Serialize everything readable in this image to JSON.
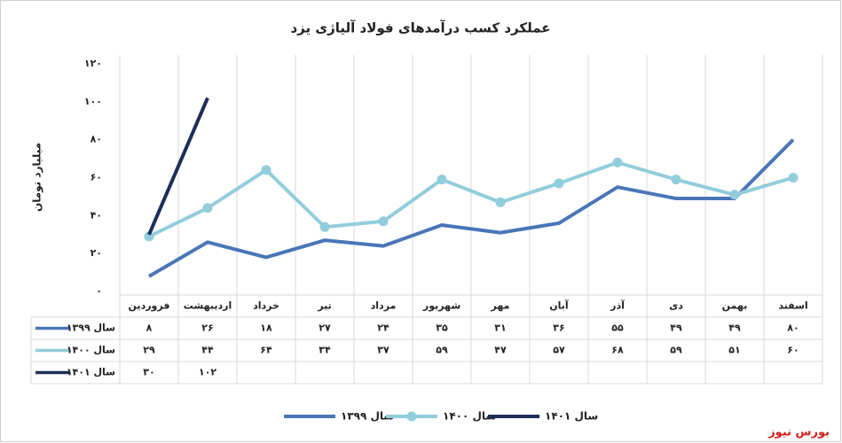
{
  "chart_data": {
    "type": "line",
    "title": "عملکرد کسب درآمدهای فولاد آلیاژی یزد",
    "y_label": "میلیارد تومان",
    "categories": [
      "فروردین",
      "اردیبهشت",
      "خرداد",
      "تیر",
      "مرداد",
      "شهریور",
      "مهر",
      "آبان",
      "آذر",
      "دی",
      "بهمن",
      "اسفند"
    ],
    "series": [
      {
        "name": "سال ۱۳۹۹",
        "color": "#4a76b8",
        "marker": false,
        "values": [
          8,
          26,
          18,
          27,
          24,
          35,
          31,
          36,
          55,
          49,
          49,
          80
        ],
        "value_labels": [
          "۸",
          "۲۶",
          "۱۸",
          "۲۷",
          "۲۴",
          "۳۵",
          "۳۱",
          "۳۶",
          "۵۵",
          "۴۹",
          "۴۹",
          "۸۰"
        ]
      },
      {
        "name": "سال ۱۴۰۰",
        "color": "#92cddc",
        "marker": true,
        "values": [
          29,
          44,
          64,
          34,
          37,
          59,
          47,
          57,
          68,
          59,
          51,
          60
        ],
        "value_labels": [
          "۲۹",
          "۴۴",
          "۶۴",
          "۳۴",
          "۳۷",
          "۵۹",
          "۴۷",
          "۵۷",
          "۶۸",
          "۵۹",
          "۵۱",
          "۶۰"
        ]
      },
      {
        "name": "سال ۱۴۰۱",
        "color": "#1f2d5a",
        "marker": false,
        "values": [
          30,
          102,
          null,
          null,
          null,
          null,
          null,
          null,
          null,
          null,
          null,
          null
        ],
        "value_labels": [
          "۳۰",
          "۱۰۲",
          null,
          null,
          null,
          null,
          null,
          null,
          null,
          null,
          null,
          null
        ]
      }
    ],
    "ylim": [
      0,
      120
    ],
    "yticks": [
      {
        "value": 0,
        "label": "۰"
      },
      {
        "value": 20,
        "label": "۲۰"
      },
      {
        "value": 40,
        "label": "۴۰"
      },
      {
        "value": 60,
        "label": "۶۰"
      },
      {
        "value": 80,
        "label": "۸۰"
      },
      {
        "value": 100,
        "label": "۱۰۰"
      },
      {
        "value": 120,
        "label": "۱۲۰"
      }
    ],
    "legend": "bottom",
    "watermark": "بورس نیوز"
  }
}
